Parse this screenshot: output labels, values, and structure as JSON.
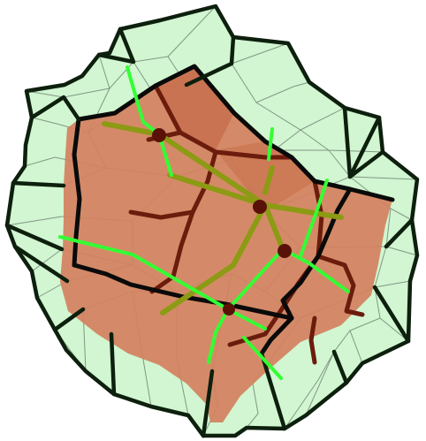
{
  "figure": {
    "kind": "3D polyhedral mesh render",
    "colors": {
      "background": "#ffffff",
      "outer_shell_fill": "#c9f5c9",
      "outer_shell_edge": "#0d1f0d",
      "thin_mesh_line": "#6e7f70",
      "inner_solid_fill": "#d4805e",
      "inner_solid_edge": "#6b1c0c",
      "strut_olive": "#8c9a14",
      "strut_bright": "#33ff33",
      "node_dark": "#5a1208"
    }
  }
}
